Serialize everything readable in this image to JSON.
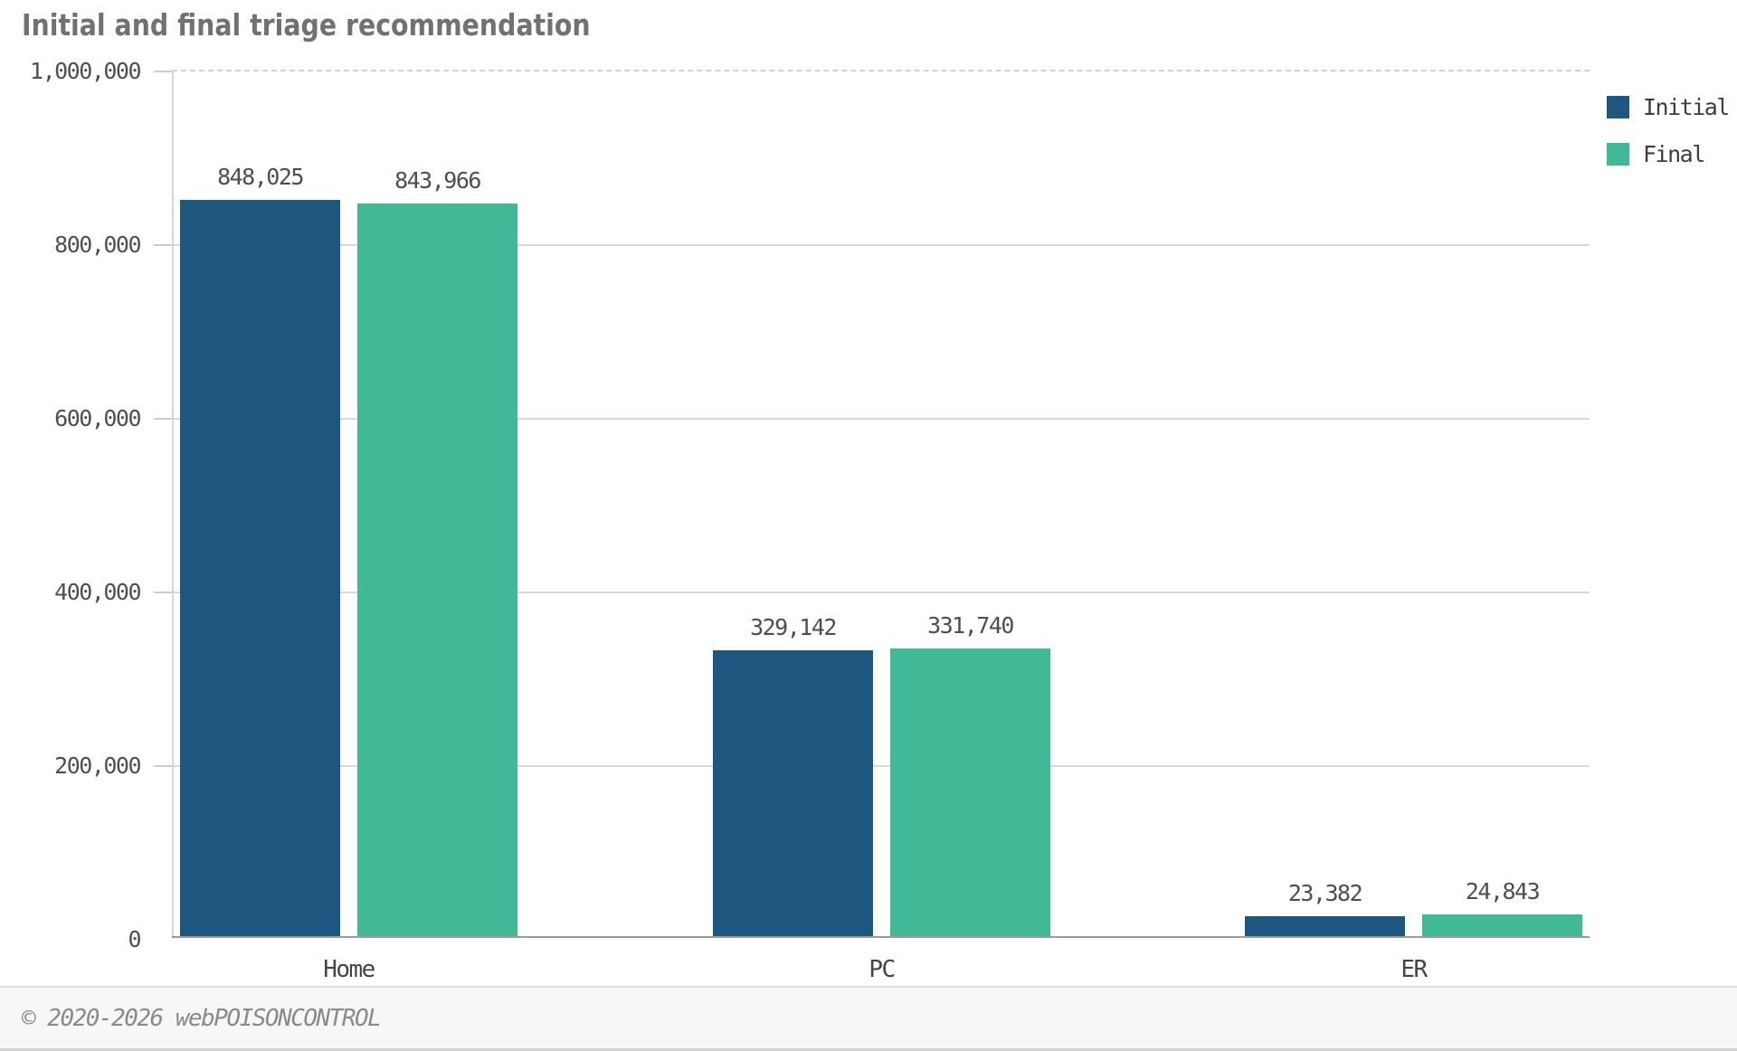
{
  "title": "Initial and final triage recommendation",
  "legend": {
    "items": [
      {
        "label": "Initial",
        "color": "#1d567e"
      },
      {
        "label": "Final",
        "color": "#42b996"
      }
    ]
  },
  "footer": {
    "copyright": "© 2020-2026 webPOISONCONTROL"
  },
  "chart_data": {
    "type": "bar",
    "title": "Initial and final triage recommendation",
    "categories": [
      "Home",
      "PC",
      "ER"
    ],
    "series": [
      {
        "name": "Initial",
        "color": "#1d567e",
        "values": [
          848025,
          329142,
          23382
        ],
        "labels": [
          "848,025",
          "329,142",
          "23,382"
        ]
      },
      {
        "name": "Final",
        "color": "#42b996",
        "values": [
          843966,
          331740,
          24843
        ],
        "labels": [
          "843,966",
          "331,740",
          "24,843"
        ]
      }
    ],
    "xlabel": "",
    "ylabel": "",
    "ylim": [
      0,
      1000000
    ],
    "yticks": [
      {
        "value": 0,
        "label": "0"
      },
      {
        "value": 200000,
        "label": "200,000"
      },
      {
        "value": 400000,
        "label": "400,000"
      },
      {
        "value": 600000,
        "label": "600,000"
      },
      {
        "value": 800000,
        "label": "800,000"
      },
      {
        "value": 1000000,
        "label": "1,000,000"
      }
    ],
    "grid": true,
    "legend_position": "top-right"
  }
}
